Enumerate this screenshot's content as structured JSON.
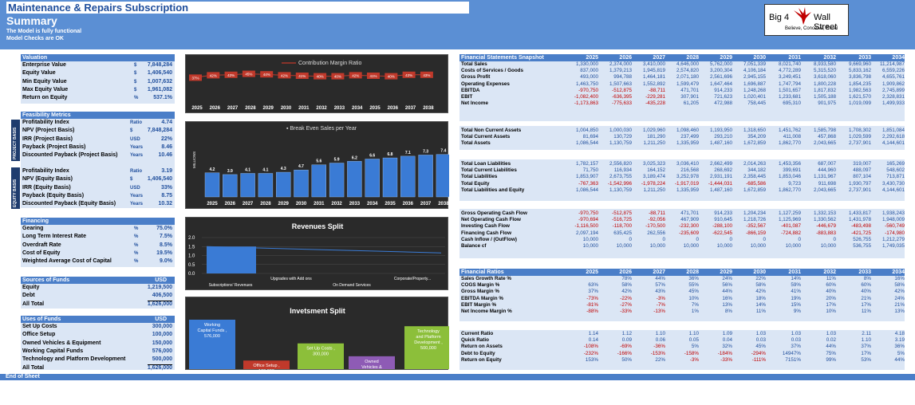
{
  "header": {
    "title": "Maintenance & Repairs Subscription",
    "subtitle": "Summary",
    "status1": "The Model is fully functional",
    "status2": "Model Checks are OK"
  },
  "logo": {
    "left": "Big 4",
    "right": "Wall Street",
    "tagline": "Believe, Conceive, Excel"
  },
  "valuation": {
    "title": "Valuation",
    "rows": [
      {
        "label": "Enterprise Value",
        "unit": "$",
        "value": "7,848,284"
      },
      {
        "label": "Equity Value",
        "unit": "$",
        "value": "1,406,540"
      },
      {
        "label": "Min Equity Value",
        "unit": "$",
        "value": "1,007,632"
      },
      {
        "label": "Max Equity Value",
        "unit": "$",
        "value": "1,961,082"
      },
      {
        "label": "Return on Equity",
        "unit": "%",
        "value": "537.1%"
      }
    ]
  },
  "feasibility": {
    "title": "Feasibility Metrics",
    "project_tag": "PROJECT BASIS",
    "equity_tag": "EQUITY BASIS",
    "project": [
      {
        "label": "Profitability Index",
        "unit": "Ratio",
        "value": "4.74"
      },
      {
        "label": "NPV (Project Basis)",
        "unit": "$",
        "value": "7,848,284"
      },
      {
        "label": "IRR (Project Basis)",
        "unit": "USD",
        "value": "22%"
      },
      {
        "label": "Payback  (Project Basis)",
        "unit": "Years",
        "value": "8.46"
      },
      {
        "label": "Discounted Payback (Project Basis)",
        "unit": "Years",
        "value": "10.46"
      }
    ],
    "equity": [
      {
        "label": "Profitability Index",
        "unit": "Ratio",
        "value": "3.19"
      },
      {
        "label": "NPV (Equity Basis)",
        "unit": "$",
        "value": "1,406,540"
      },
      {
        "label": "IRR (Equity Basis)",
        "unit": "USD",
        "value": "33%"
      },
      {
        "label": "Payback (Equity Basis)",
        "unit": "Years",
        "value": "8.75"
      },
      {
        "label": "Discounted Payback (Equity Basis)",
        "unit": "Years",
        "value": "10.32"
      }
    ]
  },
  "financing": {
    "title": "Financing",
    "rows": [
      {
        "label": "Gearing",
        "unit": "%",
        "value": "75.0%"
      },
      {
        "label": "Long Term Interest Rate",
        "unit": "%",
        "value": "7.5%"
      },
      {
        "label": "Overdraft Rate",
        "unit": "%",
        "value": "8.5%"
      },
      {
        "label": "Cost of Equity",
        "unit": "%",
        "value": "19.5%"
      },
      {
        "label": "Weighted Average Cost of Capital",
        "unit": "%",
        "value": "9.0%"
      }
    ]
  },
  "sources": {
    "title": "Sources of Funds",
    "unit": "USD",
    "rows": [
      {
        "label": "Equity",
        "value": "1,219,500"
      },
      {
        "label": "Debt",
        "value": "406,500"
      },
      {
        "label": "All Total",
        "value": "1,626,000"
      }
    ]
  },
  "uses": {
    "title": "Uses of Funds",
    "unit": "USD",
    "rows": [
      {
        "label": "Set Up Costs",
        "value": "300,000"
      },
      {
        "label": "Office Setup",
        "value": "100,000"
      },
      {
        "label": "Owned Vehicles & Equipment",
        "value": "150,000"
      },
      {
        "label": "Working Capital Funds",
        "value": "576,000"
      },
      {
        "label": "Technology and Platform Development",
        "value": "500,000"
      },
      {
        "label": "All Total",
        "value": "1,626,000"
      }
    ]
  },
  "footer": "End of Sheet",
  "chart_data": [
    {
      "type": "line",
      "legend": "Contribution Margin Ratio",
      "categories": [
        "2025",
        "2026",
        "2027",
        "2028",
        "2029",
        "2030",
        "2031",
        "2032",
        "2033",
        "2034",
        "2035",
        "2036",
        "2037",
        "2038"
      ],
      "values": [
        37,
        42,
        43,
        45,
        44,
        42,
        41,
        40,
        40,
        42,
        41,
        40,
        43,
        43
      ],
      "labels": [
        "37%",
        "42%",
        "43%",
        "45%",
        "44%",
        "42%",
        "41%",
        "40%",
        "40%",
        "42%",
        "41%",
        "40%",
        "43%",
        "43%"
      ],
      "color": "#c0392b"
    },
    {
      "type": "bar",
      "title": "Break Even Sales per Year",
      "ylabel": "MILLIONS",
      "categories": [
        "2025",
        "2026",
        "2027",
        "2028",
        "2029",
        "2030",
        "2031",
        "2032",
        "2033",
        "2034",
        "2035",
        "2036",
        "2037",
        "2038"
      ],
      "values": [
        4.2,
        3.9,
        4.1,
        4.1,
        4.3,
        4.7,
        5.6,
        5.9,
        6.2,
        6.6,
        6.8,
        7.1,
        7.3,
        7.4
      ],
      "color": "#3a7bd5"
    },
    {
      "type": "bar",
      "title": "Revenues Split",
      "categories": [
        "Subscriptions' Revenues",
        "Upgrades with Add ons",
        "On Demand Services",
        "Corporate/Property..."
      ],
      "values": [
        1.5,
        0,
        0,
        0
      ],
      "yticks": [
        "0.0",
        "0.5",
        "1.0",
        "1.5",
        "2.0"
      ],
      "color": "#3a7bd5"
    },
    {
      "type": "bar",
      "title": "Invetsment Split",
      "categories": [
        "Working Capital Funds",
        "Office Setup",
        "Set Up Costs",
        "Owned Vehicles & Equipment",
        "Technology and Platform Development"
      ],
      "labels": [
        "Working Capital Funds , 576,000",
        "Office Setup , 100,000",
        "Set Up Costs , 300,000",
        "Owned Vehicles & Equipment , 150,000",
        "Technology and Platform Development , 500,000"
      ],
      "values": [
        576000,
        100000,
        300000,
        150000,
        500000
      ],
      "colors": [
        "#3a7bd5",
        "#c0392b",
        "#8cbf3a",
        "#8e5bb5",
        "#8cbf3a"
      ]
    }
  ],
  "fs": {
    "title": "Financial Statements Snapshot",
    "years": [
      "2025",
      "2026",
      "2027",
      "2028",
      "2029",
      "2030",
      "2031",
      "2032",
      "2033",
      "2034"
    ],
    "groups": [
      [
        [
          "Total Sales",
          "1,330,000",
          "2,374,000",
          "3,410,000",
          "4,646,000",
          "5,762,000",
          "7,051,339",
          "8,021,740",
          "8,933,580",
          "9,669,960",
          "11,214,987"
        ],
        [
          "Costs of Services / Goods",
          "837,000",
          "1,379,213",
          "1,945,819",
          "2,574,820",
          "3,200,304",
          "4,106,184",
          "4,772,289",
          "5,315,520",
          "5,833,162",
          "6,559,226"
        ],
        [
          "Gross Profit",
          "493,000",
          "994,788",
          "1,464,181",
          "2,071,180",
          "2,561,696",
          "2,945,155",
          "3,249,451",
          "3,618,060",
          "3,836,798",
          "4,655,761"
        ],
        [
          "Operating Expenses",
          "1,463,750",
          "1,507,663",
          "1,552,892",
          "1,599,479",
          "1,647,464",
          "1,696,887",
          "1,747,794",
          "1,800,228",
          "1,854,235",
          "1,909,862"
        ],
        [
          "EBITDA",
          "-970,750",
          "-512,875",
          "-88,711",
          "471,701",
          "914,233",
          "1,248,268",
          "1,501,657",
          "1,817,832",
          "1,982,563",
          "2,745,899"
        ],
        [
          "EBIT",
          "-1,082,400",
          "-636,395",
          "-229,281",
          "307,901",
          "721,623",
          "1,020,401",
          "1,233,681",
          "1,505,188",
          "1,621,570",
          "2,328,831"
        ],
        [
          "Net Income",
          "-1,173,863",
          "-775,633",
          "-435,228",
          "61,205",
          "472,988",
          "758,445",
          "695,310",
          "901,975",
          "1,019,099",
          "1,499,933"
        ]
      ],
      [
        [
          "Total Non Current Assets",
          "1,004,850",
          "1,000,030",
          "1,029,960",
          "1,098,460",
          "1,193,950",
          "1,318,650",
          "1,451,762",
          "1,585,798",
          "1,708,302",
          "1,851,084"
        ],
        [
          "Total Current Assets",
          "81,694",
          "130,729",
          "181,290",
          "237,499",
          "293,210",
          "354,209",
          "411,008",
          "457,868",
          "1,029,599",
          "2,292,618"
        ],
        [
          "Total Assets",
          "1,086,544",
          "1,130,759",
          "1,211,250",
          "1,335,959",
          "1,487,160",
          "1,672,859",
          "1,862,770",
          "2,043,665",
          "2,737,901",
          "4,144,601"
        ]
      ],
      [
        [
          "Total Loan Liabilities",
          "1,782,157",
          "2,556,820",
          "3,025,323",
          "3,036,410",
          "2,662,499",
          "2,014,263",
          "1,453,356",
          "687,007",
          "319,007",
          "165,269"
        ],
        [
          "Total Current Liabilities",
          "71,750",
          "116,934",
          "164,152",
          "216,568",
          "268,692",
          "344,182",
          "399,691",
          "444,960",
          "488,097",
          "548,602"
        ],
        [
          "Total Liabilities",
          "1,853,907",
          "2,673,755",
          "3,189,474",
          "3,252,978",
          "2,931,191",
          "2,358,445",
          "1,853,046",
          "1,131,967",
          "807,104",
          "713,871"
        ],
        [
          "Total Equity",
          "-767,363",
          "-1,542,996",
          "-1,978,224",
          "-1,917,019",
          "-1,444,031",
          "-685,586",
          "9,723",
          "911,698",
          "1,930,797",
          "3,430,730"
        ],
        [
          "Total Liabilities and Equity",
          "1,086,544",
          "1,130,759",
          "1,211,250",
          "1,335,959",
          "1,487,160",
          "1,672,859",
          "1,862,770",
          "2,043,665",
          "2,737,901",
          "4,144,601"
        ]
      ],
      [
        [
          "Gross Operating Cash Flow",
          "-970,750",
          "-512,875",
          "-88,711",
          "471,701",
          "914,233",
          "1,204,234",
          "1,127,259",
          "1,332,153",
          "1,433,817",
          "1,938,243"
        ],
        [
          "Net Operating Cash Flow",
          "-970,694",
          "-516,725",
          "-92,056",
          "467,909",
          "910,645",
          "1,218,726",
          "1,125,969",
          "1,330,562",
          "1,431,978",
          "1,948,009"
        ],
        [
          "Investing Cash Flow",
          "-1,116,500",
          "-118,700",
          "-170,500",
          "-232,300",
          "-288,100",
          "-352,567",
          "-401,087",
          "-446,679",
          "-483,498",
          "-560,749"
        ],
        [
          "Financing Cash Flow",
          "2,097,194",
          "635,425",
          "262,556",
          "-235,609",
          "-622,545",
          "-866,159",
          "-724,882",
          "-883,883",
          "-421,725",
          "-174,980"
        ],
        [
          "Cash Inflow / (OutFlow)",
          "10,000",
          "0",
          "0",
          "0",
          "0",
          "0",
          "0",
          "0",
          "526,755",
          "1,212,279"
        ],
        [
          "Balance cf",
          "10,000",
          "10,000",
          "10,000",
          "10,000",
          "10,000",
          "10,000",
          "10,000",
          "10,000",
          "536,755",
          "1,749,035"
        ]
      ]
    ]
  },
  "ratios": {
    "title": "Financial Ratios",
    "years": [
      "2025",
      "2026",
      "2027",
      "2028",
      "2029",
      "2030",
      "2031",
      "2032",
      "2033",
      "2034"
    ],
    "groups": [
      [
        [
          "Sales Growth Rate %",
          "",
          "78%",
          "44%",
          "36%",
          "24%",
          "22%",
          "14%",
          "11%",
          "8%",
          "16%"
        ],
        [
          "COGS Margin %",
          "63%",
          "58%",
          "57%",
          "55%",
          "56%",
          "58%",
          "59%",
          "60%",
          "60%",
          "58%"
        ],
        [
          "Gross Margin %",
          "37%",
          "42%",
          "43%",
          "45%",
          "44%",
          "42%",
          "41%",
          "40%",
          "40%",
          "42%"
        ],
        [
          "EBITDA Margin %",
          "-73%",
          "-22%",
          "-3%",
          "10%",
          "16%",
          "18%",
          "19%",
          "20%",
          "21%",
          "24%"
        ],
        [
          "EBIT Margin %",
          "-81%",
          "-27%",
          "-7%",
          "7%",
          "13%",
          "14%",
          "15%",
          "17%",
          "17%",
          "21%"
        ],
        [
          "Net Income Margin %",
          "-88%",
          "-33%",
          "-13%",
          "1%",
          "8%",
          "11%",
          "9%",
          "10%",
          "11%",
          "13%"
        ]
      ],
      [
        [
          "Current Ratio",
          "1.14",
          "1.12",
          "1.10",
          "1.10",
          "1.09",
          "1.03",
          "1.03",
          "1.03",
          "2.11",
          "4.18"
        ],
        [
          "Quick Ratio",
          "0.14",
          "0.09",
          "0.06",
          "0.05",
          "0.04",
          "0.03",
          "0.03",
          "0.02",
          "1.10",
          "3.19"
        ],
        [
          "Return on Assets",
          "-108%",
          "-69%",
          "-36%",
          "5%",
          "32%",
          "45%",
          "37%",
          "44%",
          "37%",
          "36%"
        ],
        [
          "Debt to Equity",
          "-232%",
          "-166%",
          "-153%",
          "-158%",
          "-184%",
          "-294%",
          "14947%",
          "75%",
          "17%",
          "5%"
        ],
        [
          "Return on Equity",
          "153%",
          "50%",
          "22%",
          "-3%",
          "-33%",
          "-111%",
          "7151%",
          "99%",
          "53%",
          "44%"
        ]
      ]
    ]
  }
}
